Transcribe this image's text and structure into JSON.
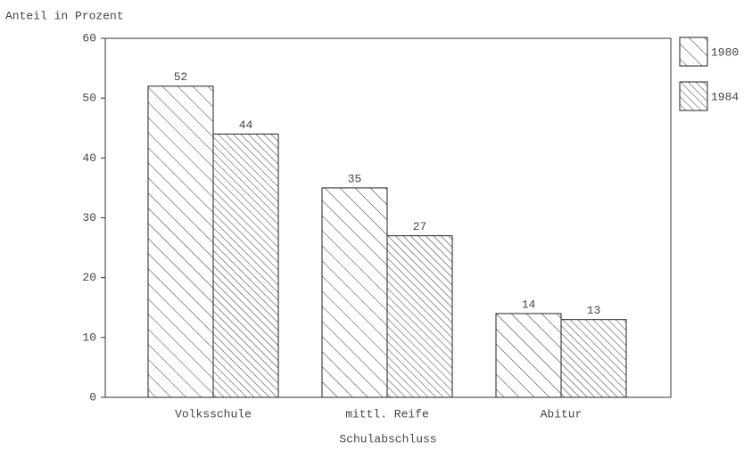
{
  "chart_data": {
    "type": "bar",
    "y_label": "Anteil in Prozent",
    "x_label": "Schulabschluss",
    "categories": [
      "Volksschule",
      "mittl. Reife",
      "Abitur"
    ],
    "series": [
      {
        "name": "1980",
        "color": "#222222",
        "hatch": "sparse",
        "values": [
          52,
          35,
          14
        ]
      },
      {
        "name": "1984",
        "color": "#222222",
        "hatch": "dense",
        "values": [
          44,
          27,
          13
        ]
      }
    ],
    "ylim": [
      0,
      60
    ],
    "yticks": [
      0,
      10,
      20,
      30,
      40,
      50,
      60
    ],
    "legend": "right"
  }
}
